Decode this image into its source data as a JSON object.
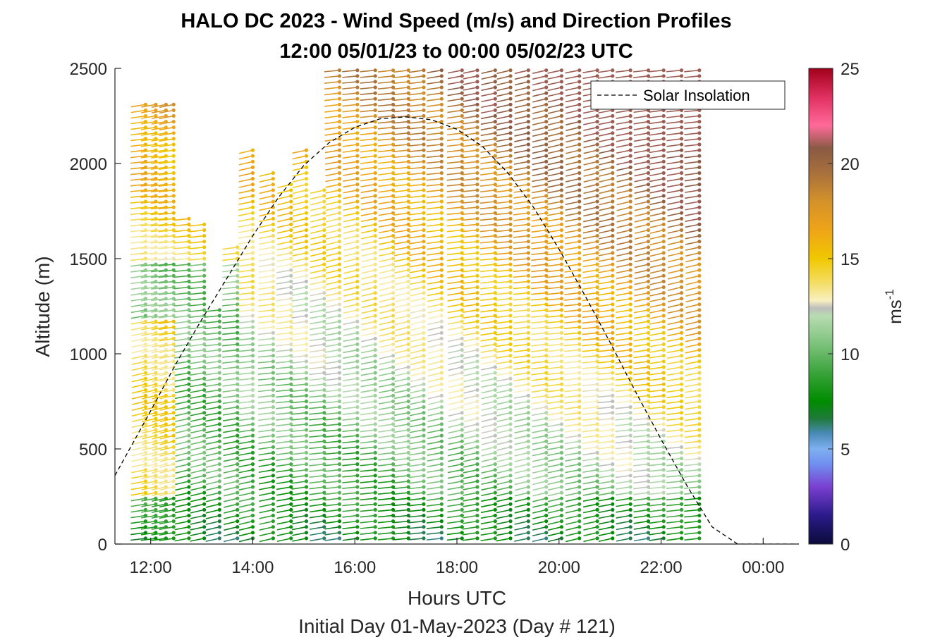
{
  "chart_data": {
    "type": "wind-barb-profile",
    "title": "HALO DC 2023 - Wind Speed (m/s) and Direction Profiles",
    "subtitle": "12:00 05/01/23 to 00:00 05/02/23  UTC",
    "xlabel": "Hours UTC",
    "x_sublabel": "Initial Day 01-May-2023 (Day # 121)",
    "ylabel": "Altitude (m)",
    "xlim": [
      11.3,
      24.7
    ],
    "ylim": [
      0,
      2500
    ],
    "x_ticks": [
      12,
      14,
      16,
      18,
      20,
      22,
      24
    ],
    "x_tick_labels": [
      "12:00",
      "14:00",
      "16:00",
      "18:00",
      "20:00",
      "22:00",
      "00:00"
    ],
    "y_ticks": [
      0,
      500,
      1000,
      1500,
      2000,
      2500
    ],
    "y_tick_labels": [
      "0",
      "500",
      "1000",
      "1500",
      "2000",
      "2500"
    ],
    "legend": {
      "entries": [
        "Solar Insolation"
      ],
      "placement": "top-right"
    },
    "colorbar": {
      "label": "ms",
      "label_superscript": "-1",
      "range": [
        0,
        25
      ],
      "ticks": [
        0,
        5,
        10,
        15,
        20,
        25
      ],
      "tick_labels": [
        "0",
        "5",
        "10",
        "15",
        "20",
        "25"
      ],
      "stops": [
        {
          "v": 0,
          "color": "#0b0b3a"
        },
        {
          "v": 1.5,
          "color": "#2a1a8a"
        },
        {
          "v": 3,
          "color": "#7a3fd0"
        },
        {
          "v": 4.2,
          "color": "#6f8ff0"
        },
        {
          "v": 5,
          "color": "#7fb0f0"
        },
        {
          "v": 5.8,
          "color": "#4a8ab8"
        },
        {
          "v": 6.6,
          "color": "#1f7a3a"
        },
        {
          "v": 7.5,
          "color": "#008c00"
        },
        {
          "v": 9,
          "color": "#3aa33a"
        },
        {
          "v": 10.5,
          "color": "#7cc27c"
        },
        {
          "v": 12,
          "color": "#b8dcb0"
        },
        {
          "v": 12.4,
          "color": "#bdbdbd"
        },
        {
          "v": 12.8,
          "color": "#f8f0c0"
        },
        {
          "v": 13.8,
          "color": "#f4dc60"
        },
        {
          "v": 15,
          "color": "#f0c800"
        },
        {
          "v": 16.5,
          "color": "#eea418"
        },
        {
          "v": 18,
          "color": "#d4922a"
        },
        {
          "v": 19.5,
          "color": "#a8703c"
        },
        {
          "v": 20.8,
          "color": "#8a5a44"
        },
        {
          "v": 22,
          "color": "#ff6a9a"
        },
        {
          "v": 23.5,
          "color": "#e03060"
        },
        {
          "v": 25,
          "color": "#a0001a"
        }
      ]
    },
    "profile_times_hours": [
      11.9,
      12.1,
      12.3,
      12.45,
      12.75,
      13.05,
      13.35,
      13.7,
      14.0,
      14.4,
      14.75,
      15.05,
      15.4,
      15.7,
      16.05,
      16.4,
      16.75,
      17.05,
      17.35,
      17.7,
      18.1,
      18.4,
      18.75,
      19.05,
      19.4,
      19.75,
      20.05,
      20.4,
      20.75,
      21.05,
      21.4,
      21.75,
      22.05,
      22.4,
      22.75
    ],
    "altitude_levels_m": [
      30,
      2500,
      30
    ],
    "coverage_top_m": [
      2310,
      2310,
      2310,
      2310,
      1730,
      1700,
      1250,
      1560,
      2080,
      1950,
      1910,
      2080,
      1870,
      2500,
      2500,
      2500,
      2500,
      2500,
      2500,
      2500,
      2500,
      2500,
      2500,
      2500,
      2500,
      2500,
      2500,
      2500,
      2500,
      2500,
      2500,
      2500,
      2500,
      2500,
      2500
    ],
    "coverage_note_gap_low": [
      0,
      0,
      0,
      0,
      0,
      0,
      0,
      0,
      0,
      0,
      0,
      0,
      0,
      0,
      0,
      0,
      0,
      0,
      0,
      0,
      0,
      0,
      0,
      0,
      0,
      0,
      0,
      0,
      0,
      0,
      0,
      0,
      0,
      0,
      0
    ],
    "speed_field_description": "Wind speed increases with altitude and time: about 7-9 m/s near surface, 10-12 m/s at 500-1500 m, 14-17 m/s aloft after 16:00, 18-20 m/s near 2000-2500 m after 20:00",
    "direction_field_description": "Westerly to south-westerly flow; barbs point toward the south-west",
    "insolation_curve": {
      "name": "Solar Insolation",
      "x": [
        11.3,
        12.0,
        12.5,
        13.0,
        13.5,
        14.0,
        14.5,
        15.0,
        15.5,
        16.0,
        16.5,
        17.0,
        17.5,
        18.0,
        18.5,
        19.0,
        19.5,
        20.0,
        20.5,
        21.0,
        21.5,
        22.0,
        22.5,
        23.0,
        23.5,
        23.9,
        24.0,
        24.7
      ],
      "y": [
        360,
        700,
        950,
        1180,
        1400,
        1620,
        1820,
        1990,
        2110,
        2190,
        2235,
        2245,
        2230,
        2180,
        2090,
        1950,
        1770,
        1550,
        1310,
        1060,
        800,
        550,
        310,
        90,
        0,
        0,
        0,
        0
      ]
    }
  }
}
